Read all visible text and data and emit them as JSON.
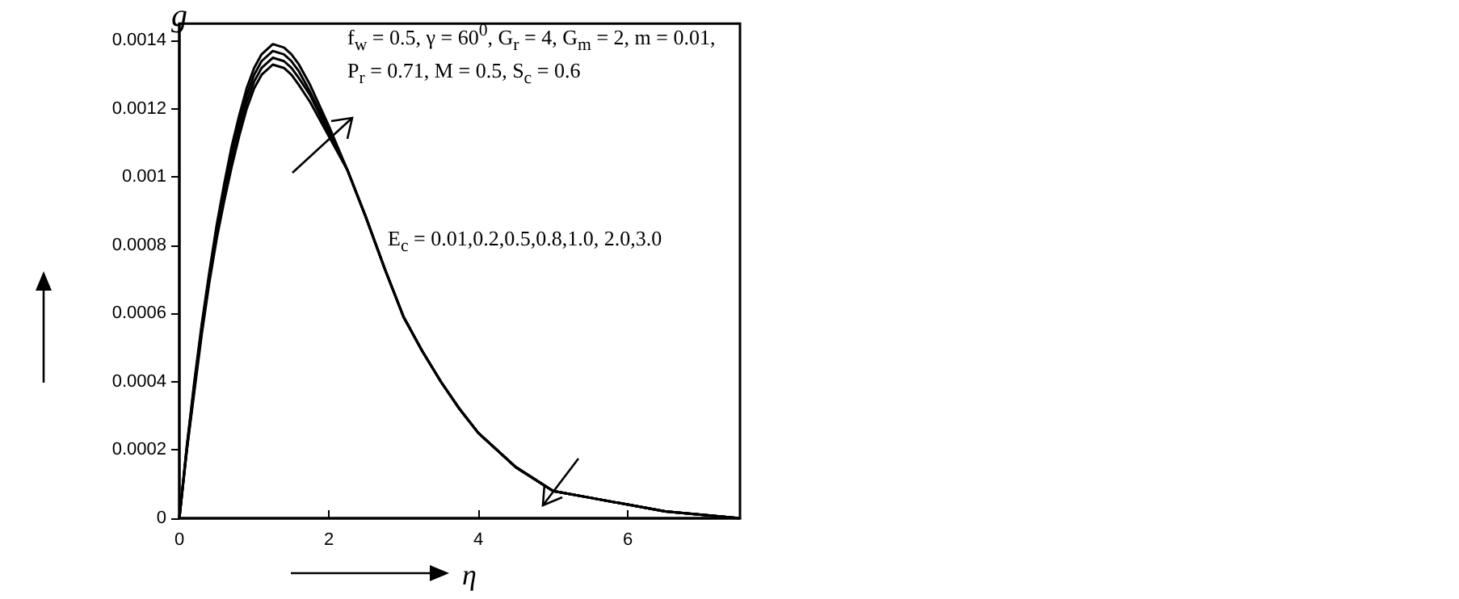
{
  "chart_data": {
    "type": "line",
    "xlabel": "η",
    "ylabel": "g",
    "annotations": [
      "f$_{w}$ = 0.5, γ = 60$^{0}$, G$_{r}$ = 4, G$_{m}$ = 2, m = 0.01,",
      "P$_{r}$ = 0.71, M = 0.5, S$_{c}$ = 0.6",
      "E$_{c}$ = 0.01,0.2,0.5,0.8,1.0, 2.0,3.0"
    ],
    "x": [
      0,
      0.1,
      0.2,
      0.3,
      0.4,
      0.5,
      0.6,
      0.7,
      0.8,
      0.9,
      1.0,
      1.1,
      1.25,
      1.4,
      1.5,
      1.6,
      1.75,
      2.0,
      2.25,
      2.5,
      2.75,
      3.0,
      3.25,
      3.5,
      3.75,
      4.0,
      4.5,
      5.0,
      5.5,
      6.0,
      6.5,
      7.0,
      7.5
    ],
    "series": [
      {
        "color": "#000000",
        "values": [
          0,
          0.00021,
          0.0004,
          0.00057,
          0.00072,
          0.00086,
          0.00098,
          0.00109,
          0.00118,
          0.00126,
          0.00132,
          0.00136,
          0.00139,
          0.00138,
          0.00136,
          0.00133,
          0.00127,
          0.00115,
          0.00102,
          0.00088,
          0.00073,
          0.00059,
          0.00049,
          0.0004,
          0.00032,
          0.00025,
          0.00015,
          8e-05,
          6e-05,
          4e-05,
          2e-05,
          1e-05,
          0
        ]
      },
      {
        "color": "#000000",
        "values": [
          0,
          0.00021,
          0.00039,
          0.00056,
          0.00071,
          0.00085,
          0.00097,
          0.00107,
          0.00116,
          0.00124,
          0.0013,
          0.00134,
          0.00137,
          0.00136,
          0.00134,
          0.00131,
          0.00125,
          0.00114,
          0.00102,
          0.00088,
          0.00073,
          0.00059,
          0.00049,
          0.0004,
          0.00032,
          0.00025,
          0.00015,
          8e-05,
          6e-05,
          4e-05,
          2e-05,
          1e-05,
          0
        ]
      },
      {
        "color": "#000000",
        "values": [
          0,
          0.0002,
          0.00038,
          0.00055,
          0.0007,
          0.00083,
          0.00095,
          0.00105,
          0.00114,
          0.00122,
          0.00128,
          0.00132,
          0.00135,
          0.00134,
          0.00132,
          0.00129,
          0.00124,
          0.00113,
          0.00102,
          0.00088,
          0.00073,
          0.00059,
          0.00049,
          0.0004,
          0.00032,
          0.00025,
          0.00015,
          8e-05,
          6e-05,
          4e-05,
          2e-05,
          1e-05,
          0
        ]
      },
      {
        "color": "#000000",
        "values": [
          0,
          0.0002,
          0.00037,
          0.00054,
          0.00069,
          0.00082,
          0.00093,
          0.00103,
          0.00112,
          0.0012,
          0.00126,
          0.0013,
          0.00133,
          0.00132,
          0.0013,
          0.00127,
          0.00122,
          0.00112,
          0.00102,
          0.00088,
          0.00073,
          0.00059,
          0.00049,
          0.0004,
          0.00032,
          0.00025,
          0.00015,
          8e-05,
          6e-05,
          4e-05,
          2e-05,
          1e-05,
          0
        ]
      }
    ],
    "xlim": [
      0,
      7.5
    ],
    "xticks": [
      0,
      2,
      4,
      6
    ],
    "ylim": [
      0,
      0.00145
    ],
    "yticks": [
      0,
      0.0002,
      0.0004,
      0.0006,
      0.0008,
      0.001,
      0.0012,
      0.0014
    ],
    "grid": false,
    "marker": "none",
    "line_style": "solid"
  }
}
